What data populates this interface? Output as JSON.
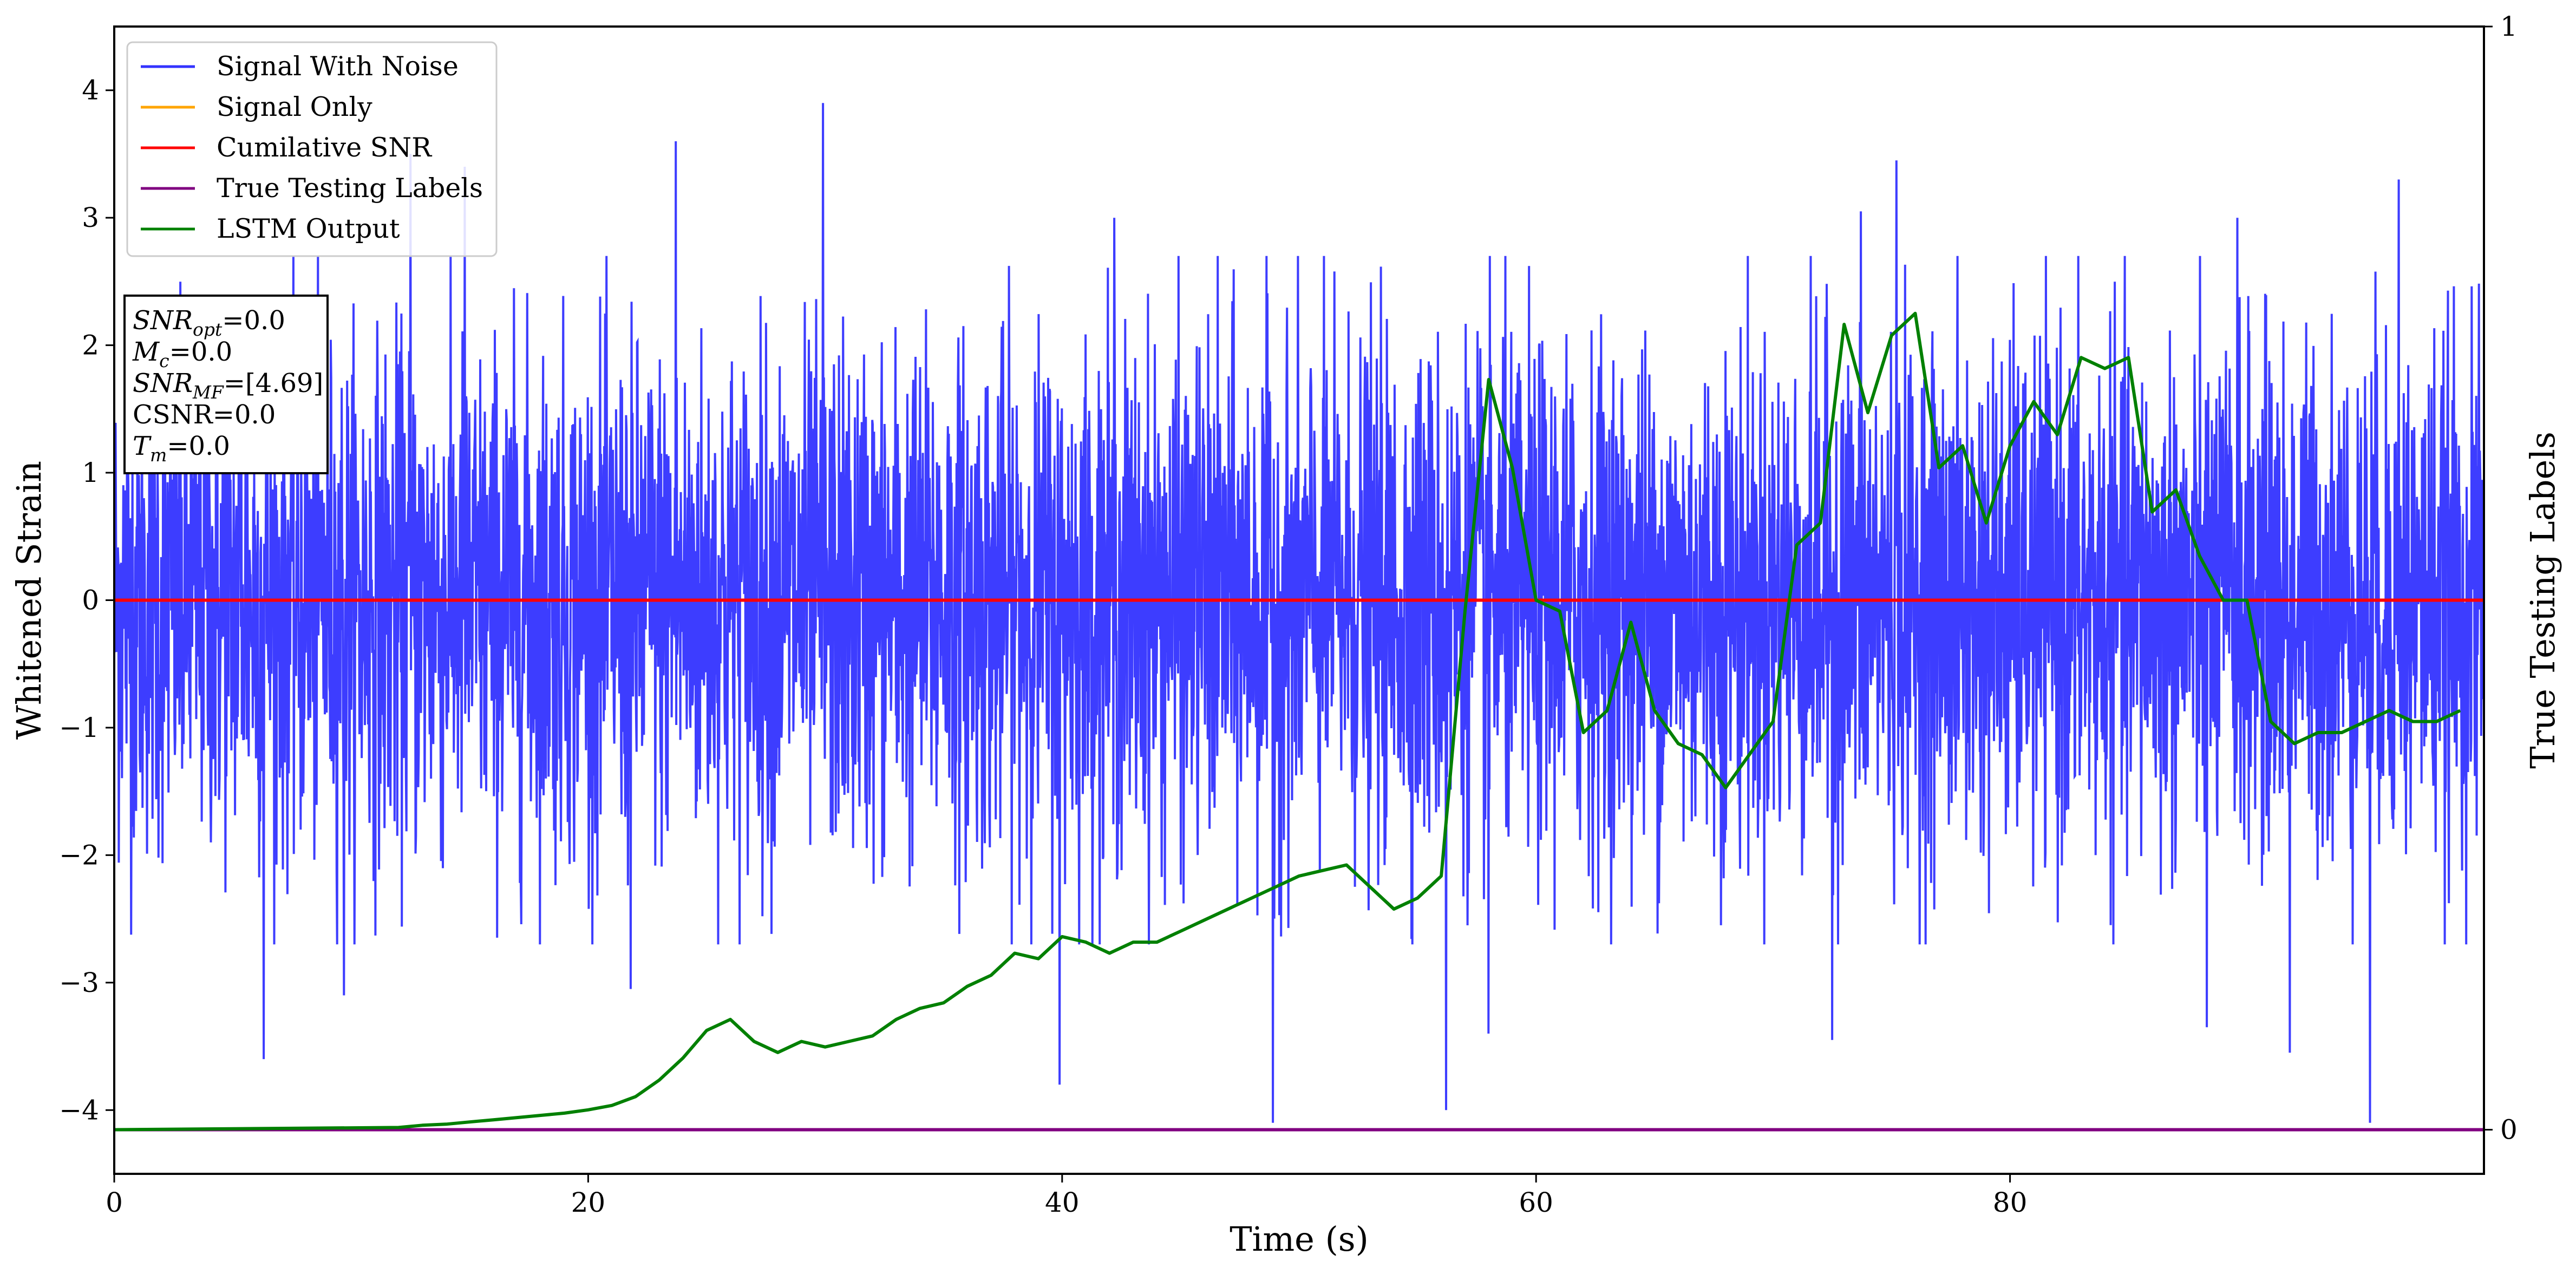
{
  "chart_data": {
    "type": "line",
    "xlabel": "Time (s)",
    "ylabel": "Whitened Strain",
    "y2label": "True Testing Labels",
    "xlim": [
      0,
      100
    ],
    "ylim": [
      -4.5,
      4.5
    ],
    "y2lim": [
      -0.04,
      1.0
    ],
    "x_ticks": [
      0,
      20,
      40,
      60,
      80
    ],
    "x_tick_labels": [
      "0",
      "20",
      "40",
      "60",
      "80"
    ],
    "y_ticks": [
      -4,
      -3,
      -2,
      -1,
      0,
      1,
      2,
      3,
      4
    ],
    "y_tick_labels": [
      "−4",
      "−3",
      "−2",
      "−1",
      "0",
      "1",
      "2",
      "3",
      "4"
    ],
    "y2_ticks": [
      0,
      1
    ],
    "y2_tick_labels": [
      "0",
      "1"
    ],
    "legend_position": "top-left",
    "grid": false,
    "legend": [
      {
        "label": "Signal With Noise",
        "color": "#3333ff"
      },
      {
        "label": "Signal Only",
        "color": "#ffa500"
      },
      {
        "label": "Cumilative SNR",
        "color": "#ff0000"
      },
      {
        "label": "True Testing Labels",
        "color": "#800080"
      },
      {
        "label": "LSTM Output",
        "color": "#008000"
      }
    ],
    "annotation": {
      "lines": [
        {
          "main": "SNR",
          "sub": "opt",
          "value": "=0.0",
          "italic": true
        },
        {
          "main": "M",
          "sub": "c",
          "value": "=0.0",
          "italic": true
        },
        {
          "main": "SNR",
          "sub": "MF",
          "value": "=[4.69]",
          "italic": true
        },
        {
          "main": "CSNR",
          "sub": "",
          "value": "=0.0",
          "italic": false
        },
        {
          "main": "T",
          "sub": "m",
          "value": "=0.0",
          "italic": true
        }
      ]
    },
    "series": [
      {
        "name": "Signal With Noise",
        "axis": "left",
        "color": "#3333ff",
        "noise": {
          "x_start": 0,
          "x_end": 100,
          "typical_range": [
            -2.6,
            2.6
          ],
          "notable_spikes": [
            {
              "x": 6.3,
              "y": -3.6
            },
            {
              "x": 9.7,
              "y": -3.1
            },
            {
              "x": 12.5,
              "y": 3.5
            },
            {
              "x": 14.8,
              "y": 3.4
            },
            {
              "x": 21.8,
              "y": -3.05
            },
            {
              "x": 23.7,
              "y": 3.6
            },
            {
              "x": 29.9,
              "y": 3.9
            },
            {
              "x": 39.9,
              "y": -3.8
            },
            {
              "x": 42.2,
              "y": 3.0
            },
            {
              "x": 48.9,
              "y": -4.1
            },
            {
              "x": 56.2,
              "y": -4.0
            },
            {
              "x": 58.0,
              "y": -3.4
            },
            {
              "x": 72.5,
              "y": -3.45
            },
            {
              "x": 73.7,
              "y": 3.05
            },
            {
              "x": 75.2,
              "y": 3.45
            },
            {
              "x": 88.3,
              "y": -3.35
            },
            {
              "x": 89.6,
              "y": 3.0
            },
            {
              "x": 91.8,
              "y": -3.55
            },
            {
              "x": 95.2,
              "y": -4.1
            },
            {
              "x": 96.4,
              "y": 3.3
            }
          ]
        }
      },
      {
        "name": "Signal Only",
        "axis": "left",
        "color": "#ffa500",
        "x": [
          0,
          100
        ],
        "y": [
          0,
          0
        ]
      },
      {
        "name": "Cumilative SNR",
        "axis": "left",
        "color": "#ff0000",
        "x": [
          0,
          100
        ],
        "y": [
          0,
          0
        ]
      },
      {
        "name": "True Testing Labels",
        "axis": "right",
        "color": "#800080",
        "x": [
          0,
          100
        ],
        "y": [
          0,
          0
        ]
      },
      {
        "name": "LSTM Output",
        "axis": "right",
        "color": "#008000",
        "x": [
          0,
          12,
          13,
          14,
          15,
          16,
          17,
          18,
          19,
          20,
          21,
          22,
          23,
          24,
          25,
          26,
          27,
          28,
          29,
          30,
          31,
          32,
          33,
          34,
          35,
          36,
          37,
          38,
          39,
          40,
          41,
          42,
          43,
          44,
          45,
          46,
          47,
          48,
          49,
          50,
          51,
          52,
          53,
          54,
          55,
          56,
          57,
          58,
          59,
          60,
          61,
          62,
          63,
          64,
          65,
          66,
          67,
          68,
          69,
          70,
          71,
          72,
          73,
          74,
          75,
          76,
          77,
          78,
          79,
          80,
          81,
          82,
          83,
          84,
          85,
          86,
          87,
          88,
          89,
          90,
          91,
          92,
          93,
          94,
          95,
          96,
          97,
          98,
          99
        ],
        "y": [
          0.0,
          0.002,
          0.004,
          0.005,
          0.007,
          0.009,
          0.011,
          0.013,
          0.015,
          0.018,
          0.022,
          0.03,
          0.045,
          0.065,
          0.09,
          0.1,
          0.08,
          0.07,
          0.08,
          0.075,
          0.08,
          0.085,
          0.1,
          0.11,
          0.115,
          0.13,
          0.14,
          0.16,
          0.155,
          0.175,
          0.17,
          0.16,
          0.17,
          0.17,
          0.18,
          0.19,
          0.2,
          0.21,
          0.22,
          0.23,
          0.235,
          0.24,
          0.22,
          0.2,
          0.21,
          0.23,
          0.47,
          0.68,
          0.6,
          0.48,
          0.47,
          0.36,
          0.38,
          0.46,
          0.38,
          0.35,
          0.34,
          0.31,
          0.34,
          0.37,
          0.53,
          0.55,
          0.73,
          0.65,
          0.72,
          0.74,
          0.6,
          0.62,
          0.55,
          0.62,
          0.66,
          0.63,
          0.7,
          0.69,
          0.7,
          0.56,
          0.58,
          0.52,
          0.48,
          0.48,
          0.37,
          0.35,
          0.36,
          0.36,
          0.37,
          0.38,
          0.37,
          0.37,
          0.38
        ]
      }
    ]
  }
}
